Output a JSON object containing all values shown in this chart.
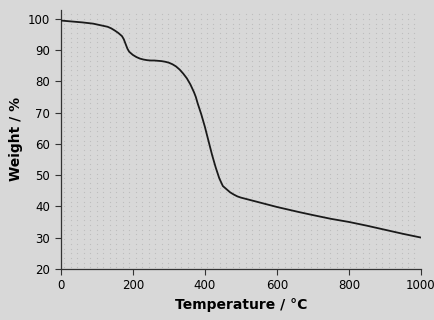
{
  "title": "",
  "xlabel": "Temperature / °C",
  "ylabel": "Weight / %",
  "xlim": [
    0,
    1000
  ],
  "ylim": [
    20,
    103
  ],
  "xticks": [
    0,
    200,
    400,
    600,
    800,
    1000
  ],
  "yticks": [
    20,
    30,
    40,
    50,
    60,
    70,
    80,
    90,
    100
  ],
  "line_color": "#1a1a1a",
  "line_width": 1.3,
  "bg_color": "#d8d8d8",
  "dot_color": "#bbbbbb",
  "curve_x": [
    0,
    30,
    60,
    90,
    110,
    130,
    140,
    150,
    160,
    170,
    175,
    180,
    185,
    190,
    200,
    210,
    220,
    230,
    240,
    250,
    260,
    270,
    280,
    290,
    300,
    310,
    320,
    330,
    340,
    350,
    360,
    370,
    375,
    380,
    390,
    400,
    410,
    420,
    430,
    440,
    450,
    460,
    470,
    480,
    490,
    500,
    520,
    540,
    560,
    580,
    600,
    630,
    660,
    700,
    750,
    800,
    850,
    900,
    950,
    1000
  ],
  "curve_y": [
    99.5,
    99.2,
    98.9,
    98.5,
    98.0,
    97.5,
    97.0,
    96.3,
    95.5,
    94.5,
    93.5,
    92.0,
    90.5,
    89.5,
    88.5,
    87.8,
    87.3,
    87.0,
    86.8,
    86.7,
    86.7,
    86.6,
    86.5,
    86.3,
    86.0,
    85.5,
    84.8,
    83.8,
    82.5,
    81.0,
    79.0,
    76.5,
    75.0,
    73.0,
    69.5,
    65.5,
    61.0,
    56.5,
    52.5,
    49.0,
    46.5,
    45.5,
    44.5,
    43.8,
    43.2,
    42.8,
    42.2,
    41.6,
    41.0,
    40.4,
    39.8,
    39.0,
    38.2,
    37.2,
    36.0,
    35.0,
    33.8,
    32.5,
    31.2,
    30.0
  ],
  "xlabel_fontsize": 10,
  "ylabel_fontsize": 10,
  "tick_labelsize": 8.5
}
